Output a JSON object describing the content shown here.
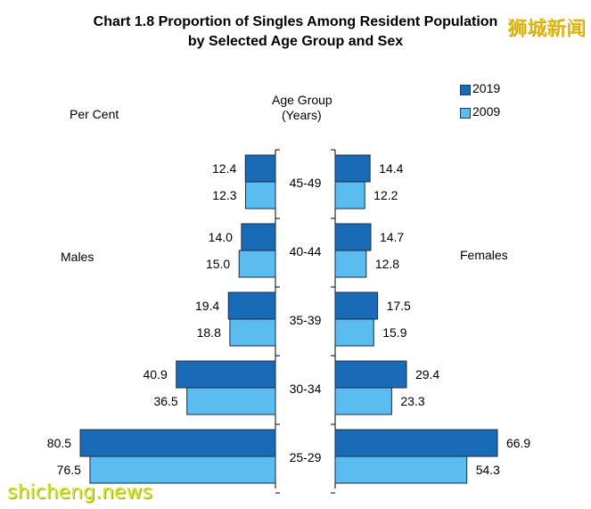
{
  "chart_data": {
    "type": "bar",
    "orientation": "horizontal-butterfly",
    "title_line1": "Chart 1.8  Proportion of Singles Among Resident Population",
    "title_line2": "by Selected Age Group and Sex",
    "ylabel": "Age Group",
    "ylabel_unit": "(Years)",
    "value_unit_label": "Per Cent",
    "left_side_label": "Males",
    "right_side_label": "Females",
    "categories": [
      "45-49",
      "40-44",
      "35-39",
      "30-34",
      "25-29"
    ],
    "series": [
      {
        "name": "2019",
        "color": "#1a6bb5",
        "males": [
          12.4,
          14.0,
          19.4,
          40.9,
          80.5
        ],
        "females": [
          14.4,
          14.7,
          17.5,
          29.4,
          66.9
        ]
      },
      {
        "name": "2009",
        "color": "#5bbcf0",
        "males": [
          12.3,
          15.0,
          18.8,
          36.5,
          76.5
        ],
        "females": [
          12.2,
          12.8,
          15.9,
          23.3,
          54.3
        ]
      }
    ],
    "legend_position": "top-right"
  },
  "watermarks": {
    "top_right": "狮城新闻",
    "bottom_left": "shicheng.news"
  }
}
